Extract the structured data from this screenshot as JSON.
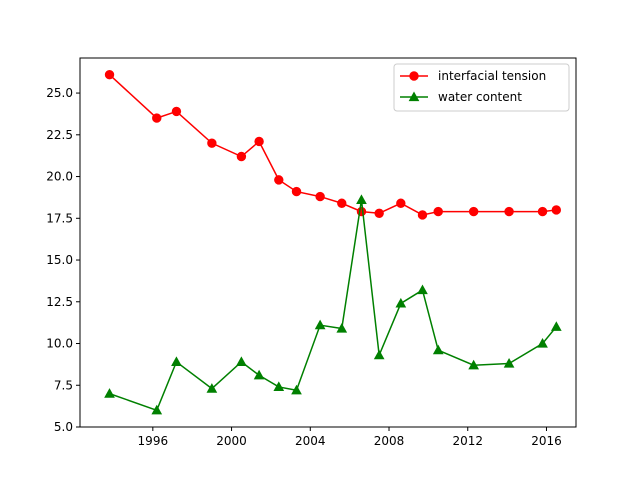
{
  "chart_data": {
    "type": "line",
    "title": "",
    "xlabel": "",
    "ylabel": "",
    "xlim": [
      1992.3,
      2017.5
    ],
    "ylim": [
      5.0,
      27.1
    ],
    "x_ticks": [
      1996,
      2000,
      2004,
      2008,
      2012,
      2016
    ],
    "y_ticks": [
      5.0,
      7.5,
      10.0,
      12.5,
      15.0,
      17.5,
      20.0,
      22.5,
      25.0
    ],
    "grid": false,
    "legend_position": "top-right",
    "series": [
      {
        "name": "interfacial tension",
        "color": "#ff0000",
        "marker": "circle",
        "points": [
          {
            "x": 1993.8,
            "y": 26.1
          },
          {
            "x": 1996.2,
            "y": 23.5
          },
          {
            "x": 1997.2,
            "y": 23.9
          },
          {
            "x": 1999.0,
            "y": 22.0
          },
          {
            "x": 2000.5,
            "y": 21.2
          },
          {
            "x": 2001.4,
            "y": 22.1
          },
          {
            "x": 2002.4,
            "y": 19.8
          },
          {
            "x": 2003.3,
            "y": 19.1
          },
          {
            "x": 2004.5,
            "y": 18.8
          },
          {
            "x": 2005.6,
            "y": 18.4
          },
          {
            "x": 2006.6,
            "y": 17.9
          },
          {
            "x": 2007.5,
            "y": 17.8
          },
          {
            "x": 2008.6,
            "y": 18.4
          },
          {
            "x": 2009.7,
            "y": 17.7
          },
          {
            "x": 2010.5,
            "y": 17.9
          },
          {
            "x": 2012.3,
            "y": 17.9
          },
          {
            "x": 2014.1,
            "y": 17.9
          },
          {
            "x": 2015.8,
            "y": 17.9
          },
          {
            "x": 2016.5,
            "y": 18.0
          }
        ]
      },
      {
        "name": "water content",
        "color": "#008000",
        "marker": "triangle",
        "points": [
          {
            "x": 1993.8,
            "y": 7.0
          },
          {
            "x": 1996.2,
            "y": 6.0
          },
          {
            "x": 1997.2,
            "y": 8.9
          },
          {
            "x": 1999.0,
            "y": 7.3
          },
          {
            "x": 2000.5,
            "y": 8.9
          },
          {
            "x": 2001.4,
            "y": 8.1
          },
          {
            "x": 2002.4,
            "y": 7.4
          },
          {
            "x": 2003.3,
            "y": 7.2
          },
          {
            "x": 2004.5,
            "y": 11.1
          },
          {
            "x": 2005.6,
            "y": 10.9
          },
          {
            "x": 2006.6,
            "y": 18.6
          },
          {
            "x": 2007.5,
            "y": 9.3
          },
          {
            "x": 2008.6,
            "y": 12.4
          },
          {
            "x": 2009.7,
            "y": 13.2
          },
          {
            "x": 2010.5,
            "y": 9.6
          },
          {
            "x": 2012.3,
            "y": 8.7
          },
          {
            "x": 2014.1,
            "y": 8.8
          },
          {
            "x": 2015.8,
            "y": 10.0
          },
          {
            "x": 2016.5,
            "y": 11.0
          }
        ]
      }
    ]
  }
}
